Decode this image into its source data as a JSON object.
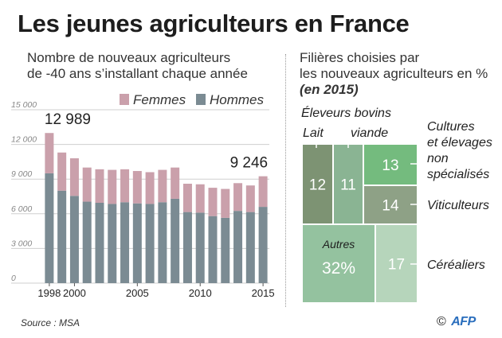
{
  "title": "Les jeunes agriculteurs en France",
  "left_subtitle": [
    "Nombre de nouveaux agriculteurs",
    "de -40 ans s’installant chaque année"
  ],
  "right_subtitle": {
    "line1": "Filières choisies par",
    "line2": "les nouveaux agriculteurs en %",
    "line3": "(en 2015)"
  },
  "source": "Source : MSA",
  "credit": {
    "copyright": "©",
    "logo": "AFP"
  },
  "colors": {
    "femmes": "#caa0ab",
    "hommes": "#7b8b93",
    "tree_dark": "#7d9373",
    "tree_medium": "#8ab493",
    "tree_bright": "#74bb7e",
    "tree_mid2": "#8ea186",
    "tree_light": "#94c29f",
    "tree_pale": "#b6d5bb"
  },
  "chart_data": [
    {
      "type": "bar",
      "stacked": true,
      "x": [
        1998,
        1999,
        2000,
        2001,
        2002,
        2003,
        2004,
        2005,
        2006,
        2007,
        2008,
        2009,
        2010,
        2011,
        2012,
        2013,
        2014,
        2015
      ],
      "x_tick_labels": [
        "1998",
        "2000",
        "2005",
        "2010",
        "2015"
      ],
      "series": [
        {
          "name": "Hommes",
          "values": [
            9500,
            8000,
            7550,
            7050,
            6950,
            6850,
            7000,
            6900,
            6850,
            7000,
            7300,
            6150,
            6100,
            5800,
            5650,
            6250,
            6150,
            6600
          ]
        },
        {
          "name": "Femmes",
          "values": [
            3489,
            3300,
            3250,
            2950,
            2900,
            2950,
            2850,
            2800,
            2750,
            2800,
            2700,
            2450,
            2450,
            2450,
            2500,
            2400,
            2300,
            2646
          ]
        }
      ],
      "ylim": [
        0,
        15000
      ],
      "y_ticks": [
        0,
        3000,
        6000,
        9000,
        12000,
        15000
      ],
      "y_tick_labels": [
        "0",
        "3 000",
        "6 000",
        "9 000",
        "12 000",
        "15 000"
      ],
      "grid": true,
      "legend": "top",
      "annotations": [
        {
          "x": 1998,
          "label": "12 989"
        },
        {
          "x": 2015,
          "label": "9 246"
        }
      ]
    },
    {
      "type": "treemap",
      "unit": "%",
      "items": [
        {
          "name": "Éleveurs bovins Lait",
          "label": "Lait",
          "value": 12,
          "value_label": "12"
        },
        {
          "name": "Éleveurs bovins viande",
          "label": "viande",
          "value": 11,
          "value_label": "11"
        },
        {
          "name": "Cultures et élevages non spécialisés",
          "label": [
            "Cultures",
            "et élevages",
            "non",
            "spécialisés"
          ],
          "value": 13,
          "value_label": "13"
        },
        {
          "name": "Viticulteurs",
          "label": "Viticulteurs",
          "value": 14,
          "value_label": "14"
        },
        {
          "name": "Autres",
          "label": "Autres",
          "value": 32,
          "value_label": "32%"
        },
        {
          "name": "Céréaliers",
          "label": "Céréaliers",
          "value": 17,
          "value_label": "17"
        }
      ],
      "group_label": "Éleveurs bovins"
    }
  ]
}
